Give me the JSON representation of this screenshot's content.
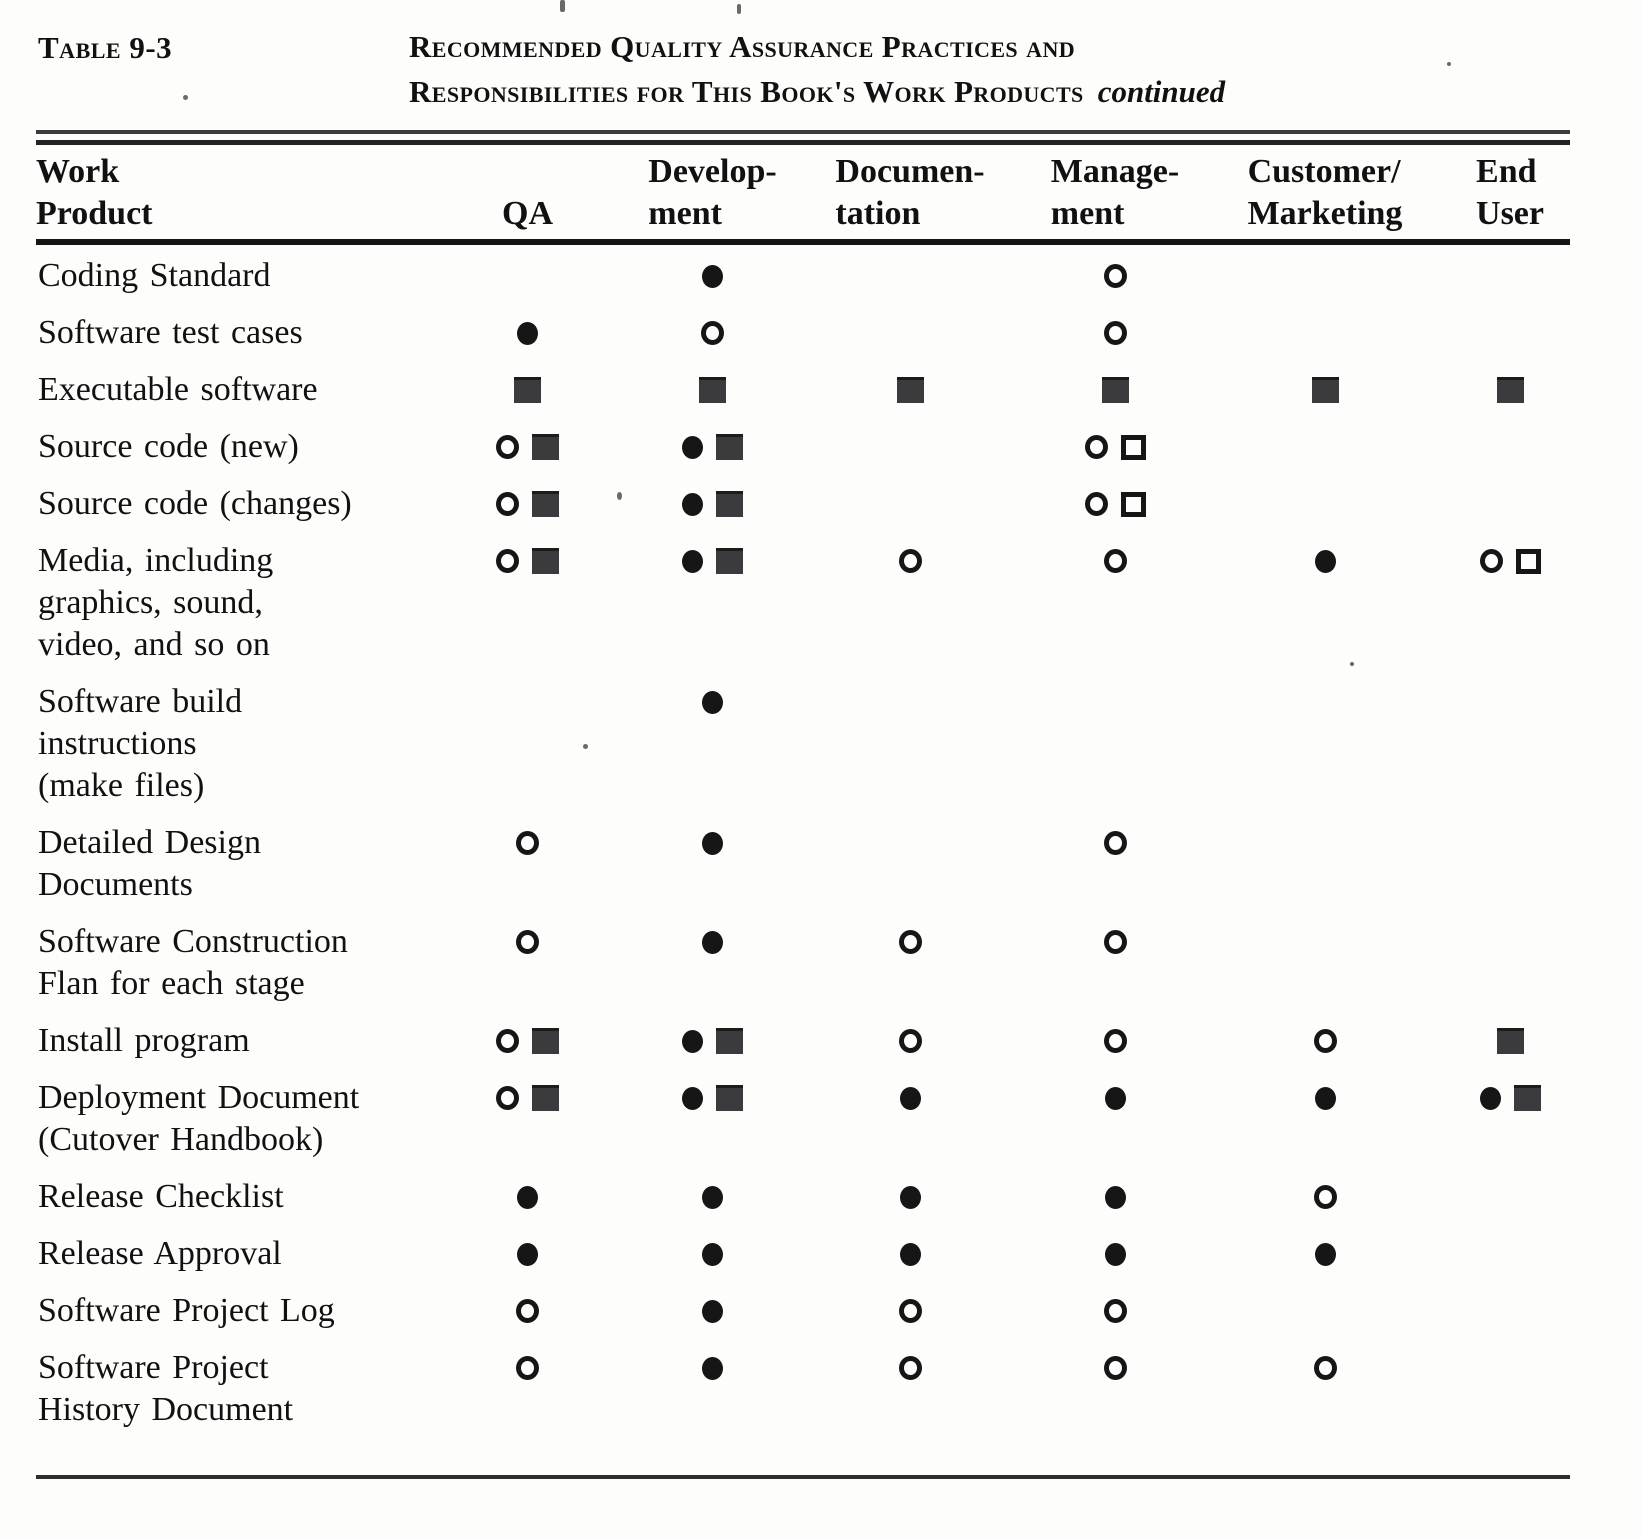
{
  "caption": {
    "table_label": "Table 9-3",
    "title_line1": "Recommended Quality Assurance Practices and",
    "title_line2": "Responsibilities for This Book's Work Products",
    "continued": "continued"
  },
  "columns": [
    {
      "key": "product",
      "label": "Work\nProduct"
    },
    {
      "key": "qa",
      "label": "QA"
    },
    {
      "key": "development",
      "label": "Develop-\nment"
    },
    {
      "key": "documentation",
      "label": "Documen-\ntation"
    },
    {
      "key": "management",
      "label": "Manage-\nment"
    },
    {
      "key": "customer_marketing",
      "label": "Customer/\nMarketing"
    },
    {
      "key": "end_user",
      "label": "End\nUser"
    }
  ],
  "symbol_legend": {
    "fc": "filled-circle",
    "oc": "open-circle",
    "fs": "filled-square",
    "os": "open-square"
  },
  "rows": [
    {
      "product": "Coding Standard",
      "marks": {
        "development": [
          "fc"
        ],
        "management": [
          "oc"
        ]
      }
    },
    {
      "product": "Software test cases",
      "marks": {
        "qa": [
          "fc"
        ],
        "development": [
          "oc"
        ],
        "management": [
          "oc"
        ]
      }
    },
    {
      "product": "Executable software",
      "marks": {
        "qa": [
          "fs"
        ],
        "development": [
          "fs"
        ],
        "documentation": [
          "fs"
        ],
        "management": [
          "fs"
        ],
        "customer_marketing": [
          "fs"
        ],
        "end_user": [
          "fs"
        ]
      }
    },
    {
      "product": "Source code (new)",
      "marks": {
        "qa": [
          "oc",
          "fs"
        ],
        "development": [
          "fc",
          "fs"
        ],
        "management": [
          "oc",
          "os"
        ]
      }
    },
    {
      "product": "Source code (changes)",
      "marks": {
        "qa": [
          "oc",
          "fs"
        ],
        "development": [
          "fc",
          "fs"
        ],
        "management": [
          "oc",
          "os"
        ]
      }
    },
    {
      "product": "Media, including\ngraphics, sound,\nvideo, and so on",
      "marks": {
        "qa": [
          "oc",
          "fs"
        ],
        "development": [
          "fc",
          "fs"
        ],
        "documentation": [
          "oc"
        ],
        "management": [
          "oc"
        ],
        "customer_marketing": [
          "fc"
        ],
        "end_user": [
          "oc",
          "os"
        ]
      }
    },
    {
      "product": "Software  build\ninstructions\n(make files)",
      "marks": {
        "development": [
          "fc"
        ]
      }
    },
    {
      "product": "Detailed Design\nDocuments",
      "marks": {
        "qa": [
          "oc"
        ],
        "development": [
          "fc"
        ],
        "management": [
          "oc"
        ]
      }
    },
    {
      "product": "Software  Construction\nFlan for each stage",
      "marks": {
        "qa": [
          "oc"
        ],
        "development": [
          "fc"
        ],
        "documentation": [
          "oc"
        ],
        "management": [
          "oc"
        ]
      }
    },
    {
      "product": "Install program",
      "marks": {
        "qa": [
          "oc",
          "fs"
        ],
        "development": [
          "fc",
          "fs"
        ],
        "documentation": [
          "oc"
        ],
        "management": [
          "oc"
        ],
        "customer_marketing": [
          "oc"
        ],
        "end_user": [
          "fs"
        ]
      }
    },
    {
      "product": "Deployment Document\n(Cutover  Handbook)",
      "marks": {
        "qa": [
          "oc",
          "fs"
        ],
        "development": [
          "fc",
          "fs"
        ],
        "documentation": [
          "fc"
        ],
        "management": [
          "fc"
        ],
        "customer_marketing": [
          "fc"
        ],
        "end_user": [
          "fc",
          "fs"
        ]
      }
    },
    {
      "product": "Release  Checklist",
      "marks": {
        "qa": [
          "fc"
        ],
        "development": [
          "fc"
        ],
        "documentation": [
          "fc"
        ],
        "management": [
          "fc"
        ],
        "customer_marketing": [
          "oc"
        ]
      }
    },
    {
      "product": "Release  Approval",
      "marks": {
        "qa": [
          "fc"
        ],
        "development": [
          "fc"
        ],
        "documentation": [
          "fc"
        ],
        "management": [
          "fc"
        ],
        "customer_marketing": [
          "fc"
        ]
      }
    },
    {
      "product": "Software Project Log",
      "marks": {
        "qa": [
          "oc"
        ],
        "development": [
          "fc"
        ],
        "documentation": [
          "oc"
        ],
        "management": [
          "oc"
        ]
      }
    },
    {
      "product": "Software Project\nHistory Document",
      "marks": {
        "qa": [
          "oc"
        ],
        "development": [
          "fc"
        ],
        "documentation": [
          "oc"
        ],
        "management": [
          "oc"
        ],
        "customer_marketing": [
          "oc"
        ]
      }
    }
  ]
}
